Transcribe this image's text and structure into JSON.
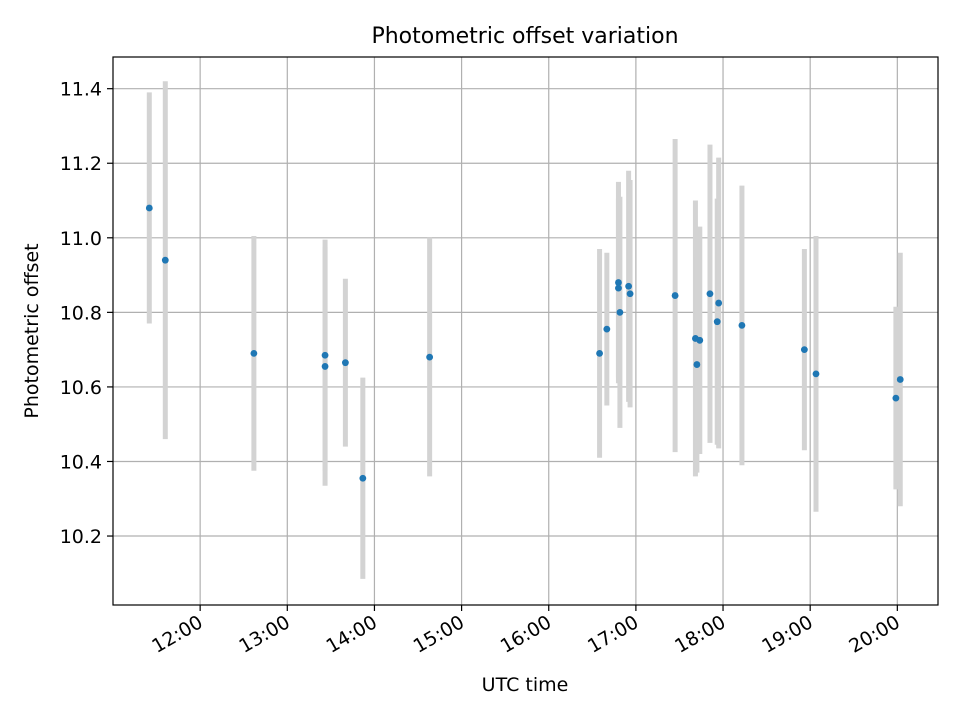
{
  "chart_data": {
    "type": "scatter",
    "title": "Photometric offset variation",
    "xlabel": "UTC time",
    "ylabel": "Photometric offset",
    "x_axis_kind": "time-of-day",
    "xlim": [
      "11:00",
      "20:28"
    ],
    "ylim": [
      10.015,
      11.485
    ],
    "xticks": [
      "12:00",
      "13:00",
      "14:00",
      "15:00",
      "16:00",
      "17:00",
      "18:00",
      "19:00",
      "20:00"
    ],
    "yticks": [
      10.2,
      10.4,
      10.6,
      10.8,
      11.0,
      11.2,
      11.4
    ],
    "grid": true,
    "legend": "none",
    "series": [
      {
        "x": [
          "11:25",
          "11:36",
          "12:37",
          "13:26",
          "13:26",
          "13:40",
          "13:52",
          "14:38",
          "16:35",
          "16:40",
          "16:48",
          "16:48",
          "16:49",
          "16:55",
          "16:56",
          "17:27",
          "17:41",
          "17:42",
          "17:44",
          "17:51",
          "17:56",
          "17:57",
          "18:13",
          "18:56",
          "19:04",
          "19:59",
          "20:02"
        ],
        "y": [
          11.08,
          10.94,
          10.69,
          10.685,
          10.655,
          10.665,
          10.355,
          10.68,
          10.69,
          10.755,
          10.88,
          10.865,
          10.8,
          10.87,
          10.85,
          10.845,
          10.73,
          10.66,
          10.725,
          10.85,
          10.775,
          10.825,
          10.765,
          10.7,
          10.635,
          10.57,
          10.62
        ],
        "yerr": [
          0.31,
          0.48,
          0.315,
          0.31,
          0.32,
          0.225,
          0.27,
          0.32,
          0.28,
          0.205,
          0.27,
          0.24,
          0.31,
          0.31,
          0.305,
          0.42,
          0.37,
          0.29,
          0.305,
          0.4,
          0.33,
          0.39,
          0.375,
          0.27,
          0.37,
          0.245,
          0.34
        ]
      }
    ]
  },
  "colors": {
    "marker": "#1f77b4",
    "errorbar": "#d3d3d3",
    "grid": "#b0b0b0",
    "axes": "#000000"
  }
}
